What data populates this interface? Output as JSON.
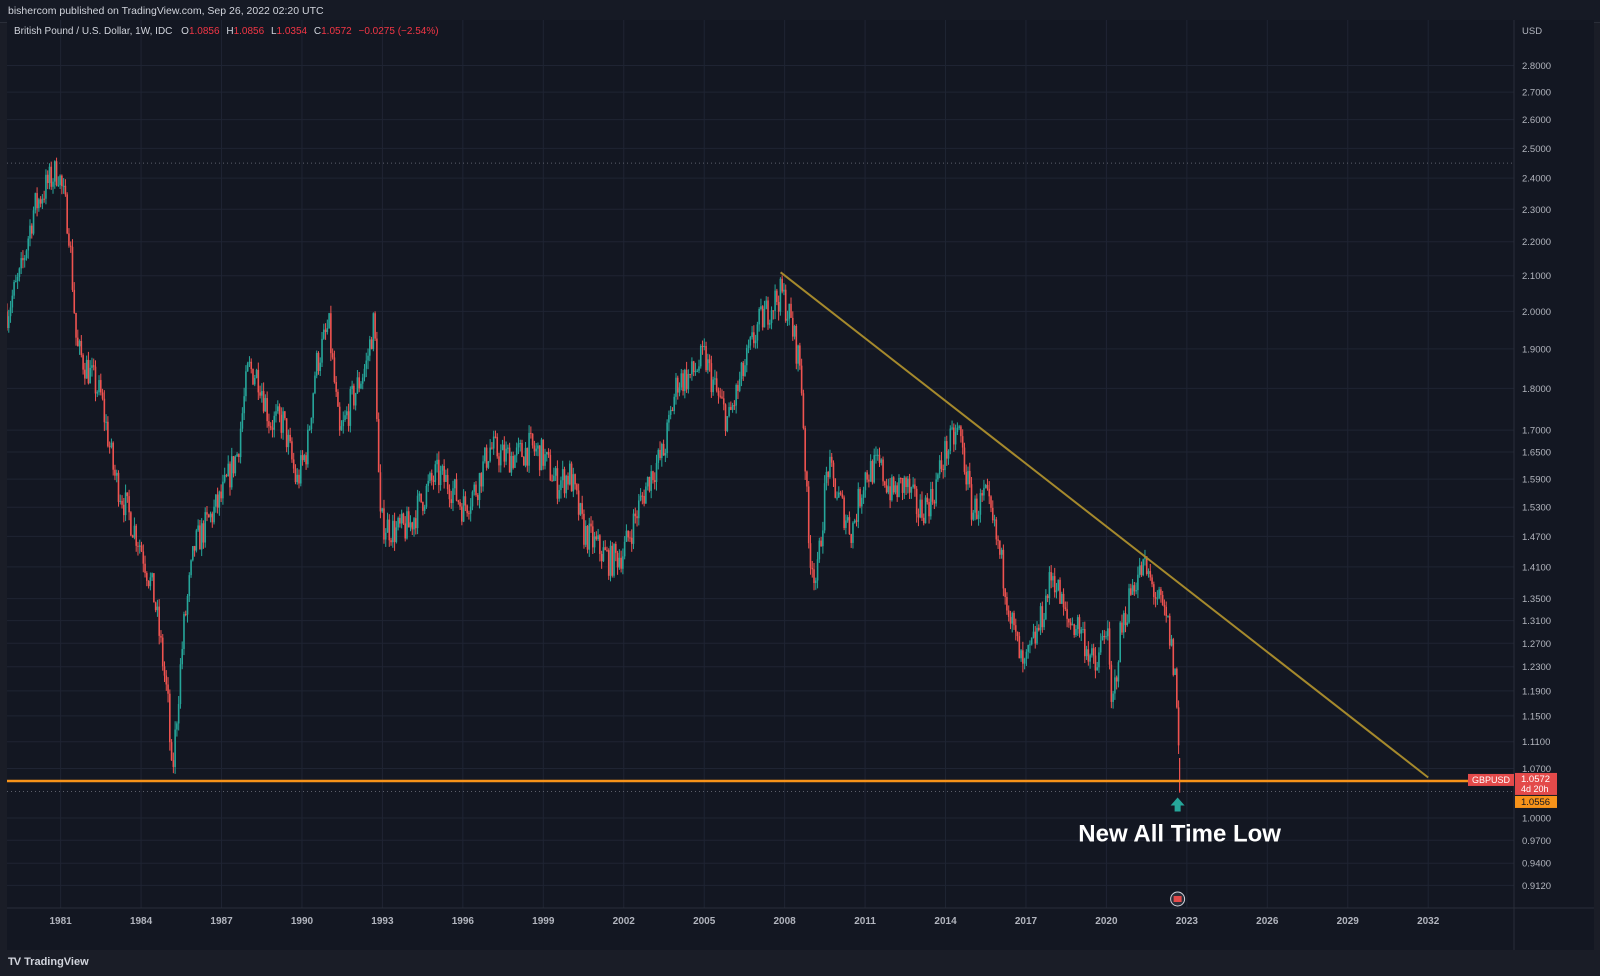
{
  "header": {
    "published": "bishercom published on TradingView.com, Sep 26, 2022 02:20 UTC"
  },
  "legend": {
    "symbol": "British Pound / U.S. Dollar, 1W, IDC",
    "open_label": "O",
    "open": "1.0856",
    "high_label": "H",
    "high": "1.0856",
    "low_label": "L",
    "low": "1.0354",
    "close_label": "C",
    "close": "1.0572",
    "change": "−0.0275 (−2.54%)"
  },
  "footer": {
    "brand": "TradingView",
    "logo": "TV"
  },
  "colors": {
    "bg": "#131722",
    "grid": "#1f2433",
    "up": "#26a69a",
    "down": "#ef5350",
    "trendline": "#a5892c",
    "support": "#f7931a",
    "text": "#d1d4dc",
    "axis_text": "#b2b5be",
    "arrow": "#26a69a",
    "label_red": "#e34a4a",
    "label_orange": "#f7931a"
  },
  "chart_data": {
    "type": "candlestick",
    "title": "British Pound / U.S. Dollar, 1W, IDC",
    "y_unit": "USD",
    "y_scale": "log",
    "ylim": [
      0.9,
      2.86
    ],
    "xlim": [
      1979.0,
      2035.2
    ],
    "x_ticks": [
      "1981",
      "1984",
      "1987",
      "1990",
      "1993",
      "1996",
      "1999",
      "2002",
      "2005",
      "2008",
      "2011",
      "2014",
      "2017",
      "2020",
      "2023",
      "2026",
      "2029",
      "2032"
    ],
    "y_ticks": [
      "2.8000",
      "2.7000",
      "2.6000",
      "2.5000",
      "2.4000",
      "2.3000",
      "2.2000",
      "2.1000",
      "2.0000",
      "1.9000",
      "1.8000",
      "1.7000",
      "1.6500",
      "1.5900",
      "1.5300",
      "1.4700",
      "1.4100",
      "1.3500",
      "1.3100",
      "1.2700",
      "1.2300",
      "1.1900",
      "1.1500",
      "1.1100",
      "1.0700",
      "1.0000",
      "0.9700",
      "0.9400",
      "0.9120"
    ],
    "price_path": [
      [
        1979.0,
        2.0
      ],
      [
        1979.5,
        2.1
      ],
      [
        1980.0,
        2.3
      ],
      [
        1980.5,
        2.38
      ],
      [
        1980.9,
        2.43
      ],
      [
        1981.3,
        2.25
      ],
      [
        1981.6,
        1.9
      ],
      [
        1982.0,
        1.85
      ],
      [
        1982.5,
        1.78
      ],
      [
        1983.0,
        1.6
      ],
      [
        1983.5,
        1.52
      ],
      [
        1984.0,
        1.45
      ],
      [
        1984.5,
        1.35
      ],
      [
        1985.0,
        1.17
      ],
      [
        1985.15,
        1.05
      ],
      [
        1985.6,
        1.3
      ],
      [
        1986.0,
        1.45
      ],
      [
        1986.5,
        1.5
      ],
      [
        1987.0,
        1.55
      ],
      [
        1987.6,
        1.65
      ],
      [
        1988.0,
        1.85
      ],
      [
        1988.4,
        1.83
      ],
      [
        1988.8,
        1.72
      ],
      [
        1989.3,
        1.72
      ],
      [
        1989.8,
        1.58
      ],
      [
        1990.2,
        1.66
      ],
      [
        1990.5,
        1.85
      ],
      [
        1991.0,
        1.96
      ],
      [
        1991.4,
        1.68
      ],
      [
        1991.8,
        1.76
      ],
      [
        1992.4,
        1.86
      ],
      [
        1992.7,
        1.98
      ],
      [
        1992.9,
        1.5
      ],
      [
        1993.5,
        1.48
      ],
      [
        1994.0,
        1.49
      ],
      [
        1994.5,
        1.55
      ],
      [
        1995.0,
        1.6
      ],
      [
        1995.5,
        1.58
      ],
      [
        1996.0,
        1.53
      ],
      [
        1996.5,
        1.57
      ],
      [
        1997.0,
        1.66
      ],
      [
        1997.5,
        1.64
      ],
      [
        1998.0,
        1.64
      ],
      [
        1998.5,
        1.66
      ],
      [
        1999.0,
        1.64
      ],
      [
        1999.5,
        1.58
      ],
      [
        2000.0,
        1.6
      ],
      [
        2000.5,
        1.48
      ],
      [
        2001.0,
        1.45
      ],
      [
        2001.5,
        1.42
      ],
      [
        2002.0,
        1.44
      ],
      [
        2002.5,
        1.52
      ],
      [
        2003.0,
        1.6
      ],
      [
        2003.5,
        1.65
      ],
      [
        2004.0,
        1.82
      ],
      [
        2004.5,
        1.83
      ],
      [
        2005.0,
        1.88
      ],
      [
        2005.5,
        1.78
      ],
      [
        2005.9,
        1.72
      ],
      [
        2006.5,
        1.85
      ],
      [
        2007.0,
        1.96
      ],
      [
        2007.5,
        2.02
      ],
      [
        2007.9,
        2.05
      ],
      [
        2008.2,
        1.98
      ],
      [
        2008.6,
        1.85
      ],
      [
        2008.9,
        1.45
      ],
      [
        2009.2,
        1.38
      ],
      [
        2009.6,
        1.62
      ],
      [
        2010.0,
        1.55
      ],
      [
        2010.5,
        1.48
      ],
      [
        2011.0,
        1.6
      ],
      [
        2011.5,
        1.62
      ],
      [
        2012.0,
        1.56
      ],
      [
        2012.5,
        1.58
      ],
      [
        2013.0,
        1.52
      ],
      [
        2013.5,
        1.55
      ],
      [
        2014.0,
        1.65
      ],
      [
        2014.5,
        1.7
      ],
      [
        2015.0,
        1.52
      ],
      [
        2015.5,
        1.55
      ],
      [
        2016.0,
        1.44
      ],
      [
        2016.5,
        1.3
      ],
      [
        2016.9,
        1.22
      ],
      [
        2017.5,
        1.3
      ],
      [
        2018.0,
        1.4
      ],
      [
        2018.5,
        1.31
      ],
      [
        2019.0,
        1.3
      ],
      [
        2019.6,
        1.22
      ],
      [
        2020.0,
        1.31
      ],
      [
        2020.2,
        1.15
      ],
      [
        2020.5,
        1.28
      ],
      [
        2021.0,
        1.38
      ],
      [
        2021.4,
        1.41
      ],
      [
        2021.9,
        1.35
      ],
      [
        2022.3,
        1.3
      ],
      [
        2022.6,
        1.2
      ],
      [
        2022.73,
        1.0572
      ]
    ],
    "annotations": {
      "trendline_start": [
        "2007.85",
        "2.1100"
      ],
      "trendline_end": [
        "2032.0",
        "1.0570"
      ],
      "support_level": "1.0520",
      "prior_low_guide": "1.0370",
      "ath_guide": "2.4500",
      "note": "New All Time Low",
      "note_at": [
        "2022.73",
        "1.0370"
      ]
    },
    "price_labels": {
      "symbol": "GBPUSD",
      "last": "1.0572",
      "countdown": "4d 20h",
      "support": "1.0556"
    },
    "grid": true,
    "legend": "top-left"
  }
}
